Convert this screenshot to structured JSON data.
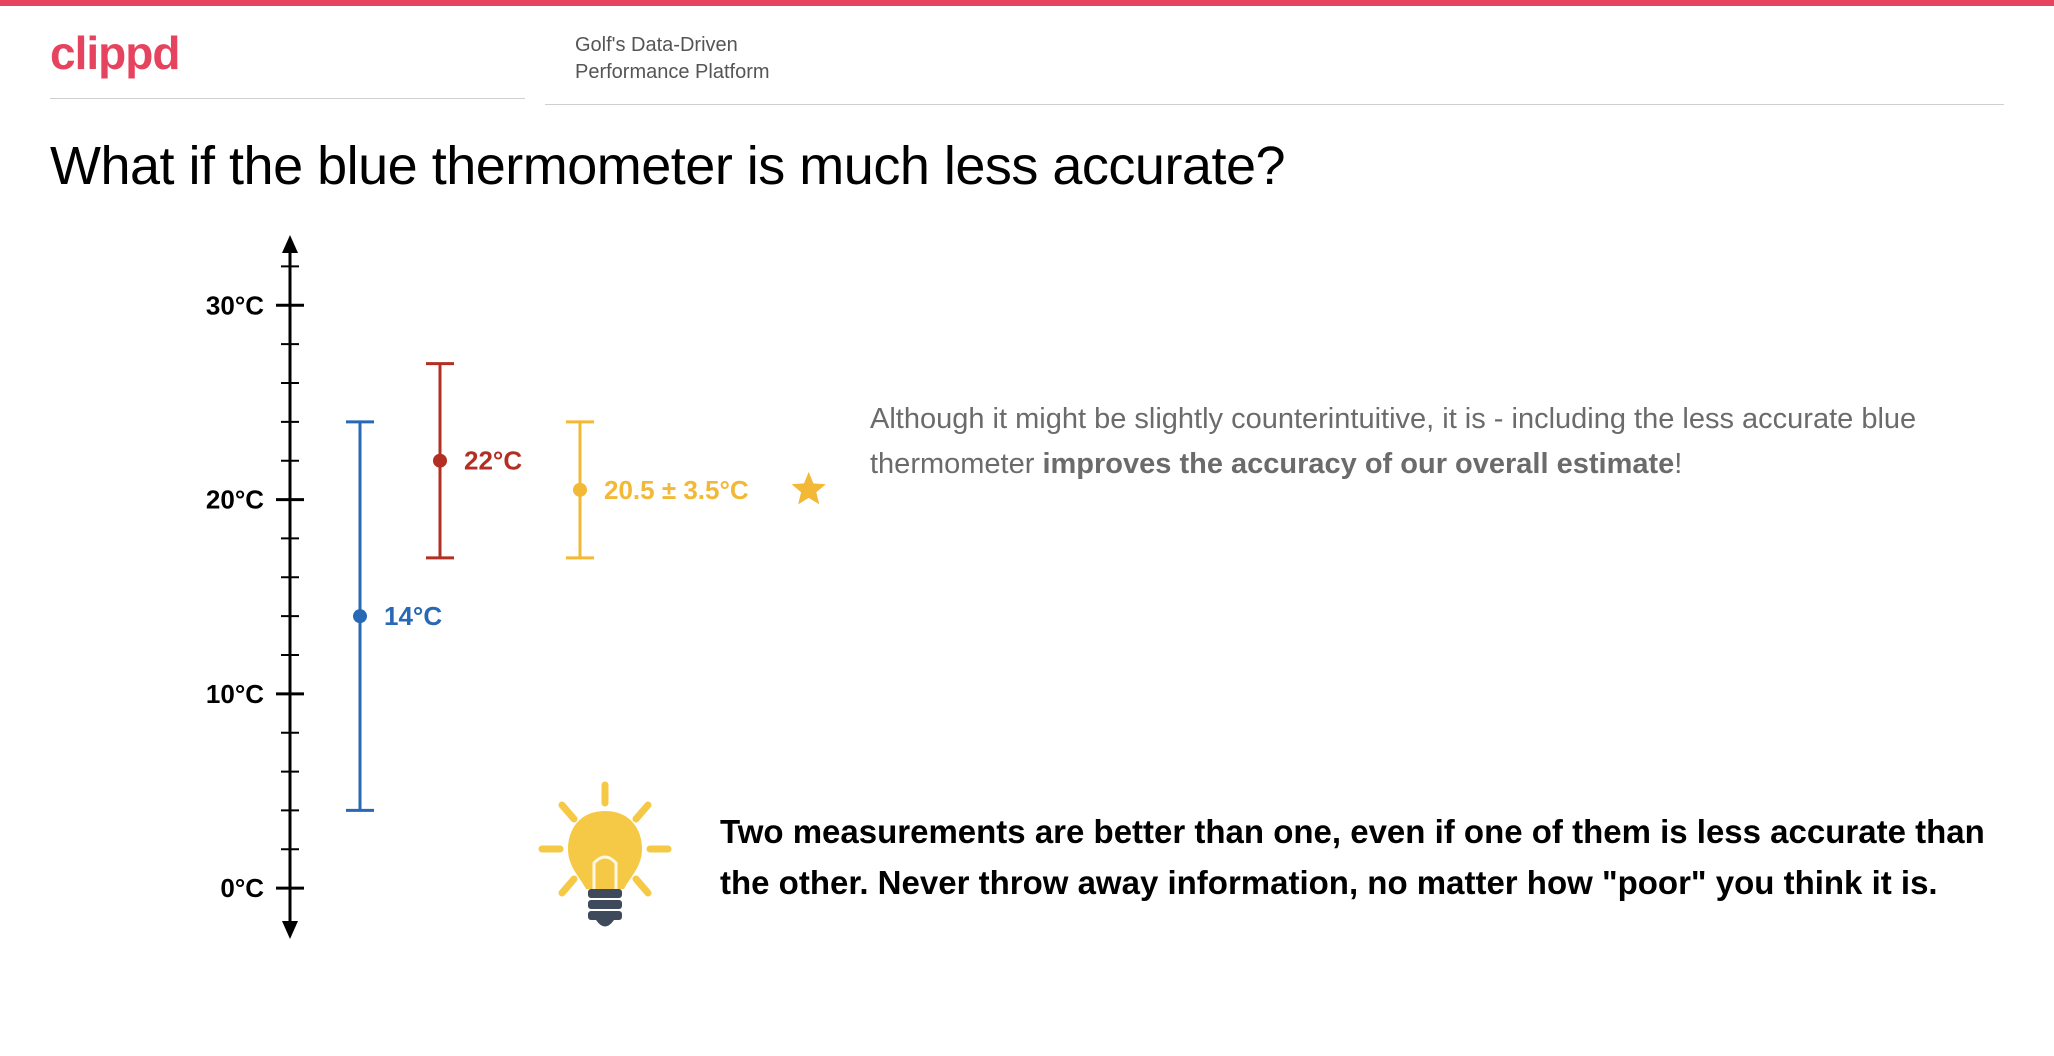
{
  "brand": {
    "logo_text": "clippd",
    "logo_color": "#e6445e",
    "tagline_line1": "Golf's Data-Driven",
    "tagline_line2": "Performance Platform",
    "topbar_color": "#e6445e"
  },
  "title": "What if the blue thermometer is much less accurate?",
  "annotation": {
    "pre": "Although it might be slightly counterintuitive, it is - including the less accurate blue thermometer ",
    "bold": "improves the accuracy of our overall estimate",
    "post": "!"
  },
  "lesson": {
    "text": "Two measurements are better than one, even if one of them is less accurate than the other. Never throw away information, no matter how \"poor\" you think it is.",
    "bulb_body_color": "#f5c945",
    "bulb_ray_color": "#f5c945",
    "bulb_base_color": "#3e4a5c"
  },
  "chart": {
    "axis_color": "#000000",
    "axis_width": 3,
    "ymin": -2,
    "ymax": 33,
    "tick_step": 2,
    "major_labels": [
      {
        "value": 0,
        "label": "0°C"
      },
      {
        "value": 10,
        "label": "10°C"
      },
      {
        "value": 20,
        "label": "20°C"
      },
      {
        "value": 30,
        "label": "30°C"
      }
    ],
    "label_fontsize": 26,
    "series": [
      {
        "id": "blue",
        "value": 14,
        "low": 4,
        "high": 24,
        "label": "14°C",
        "color": "#2869b5",
        "x_offset": 70,
        "label_dx": 24
      },
      {
        "id": "red",
        "value": 22,
        "low": 17,
        "high": 27,
        "label": "22°C",
        "color": "#b32f24",
        "x_offset": 150,
        "label_dx": 24
      },
      {
        "id": "yellow",
        "value": 20.5,
        "low": 17,
        "high": 24,
        "label": "20.5 ± 3.5°C",
        "color": "#f2b836",
        "x_offset": 290,
        "label_dx": 24,
        "star": true
      }
    ],
    "marker_radius": 7,
    "errorbar_width": 3,
    "cap_halfwidth": 14,
    "value_label_fontsize": 26,
    "star_color": "#f2b836"
  }
}
